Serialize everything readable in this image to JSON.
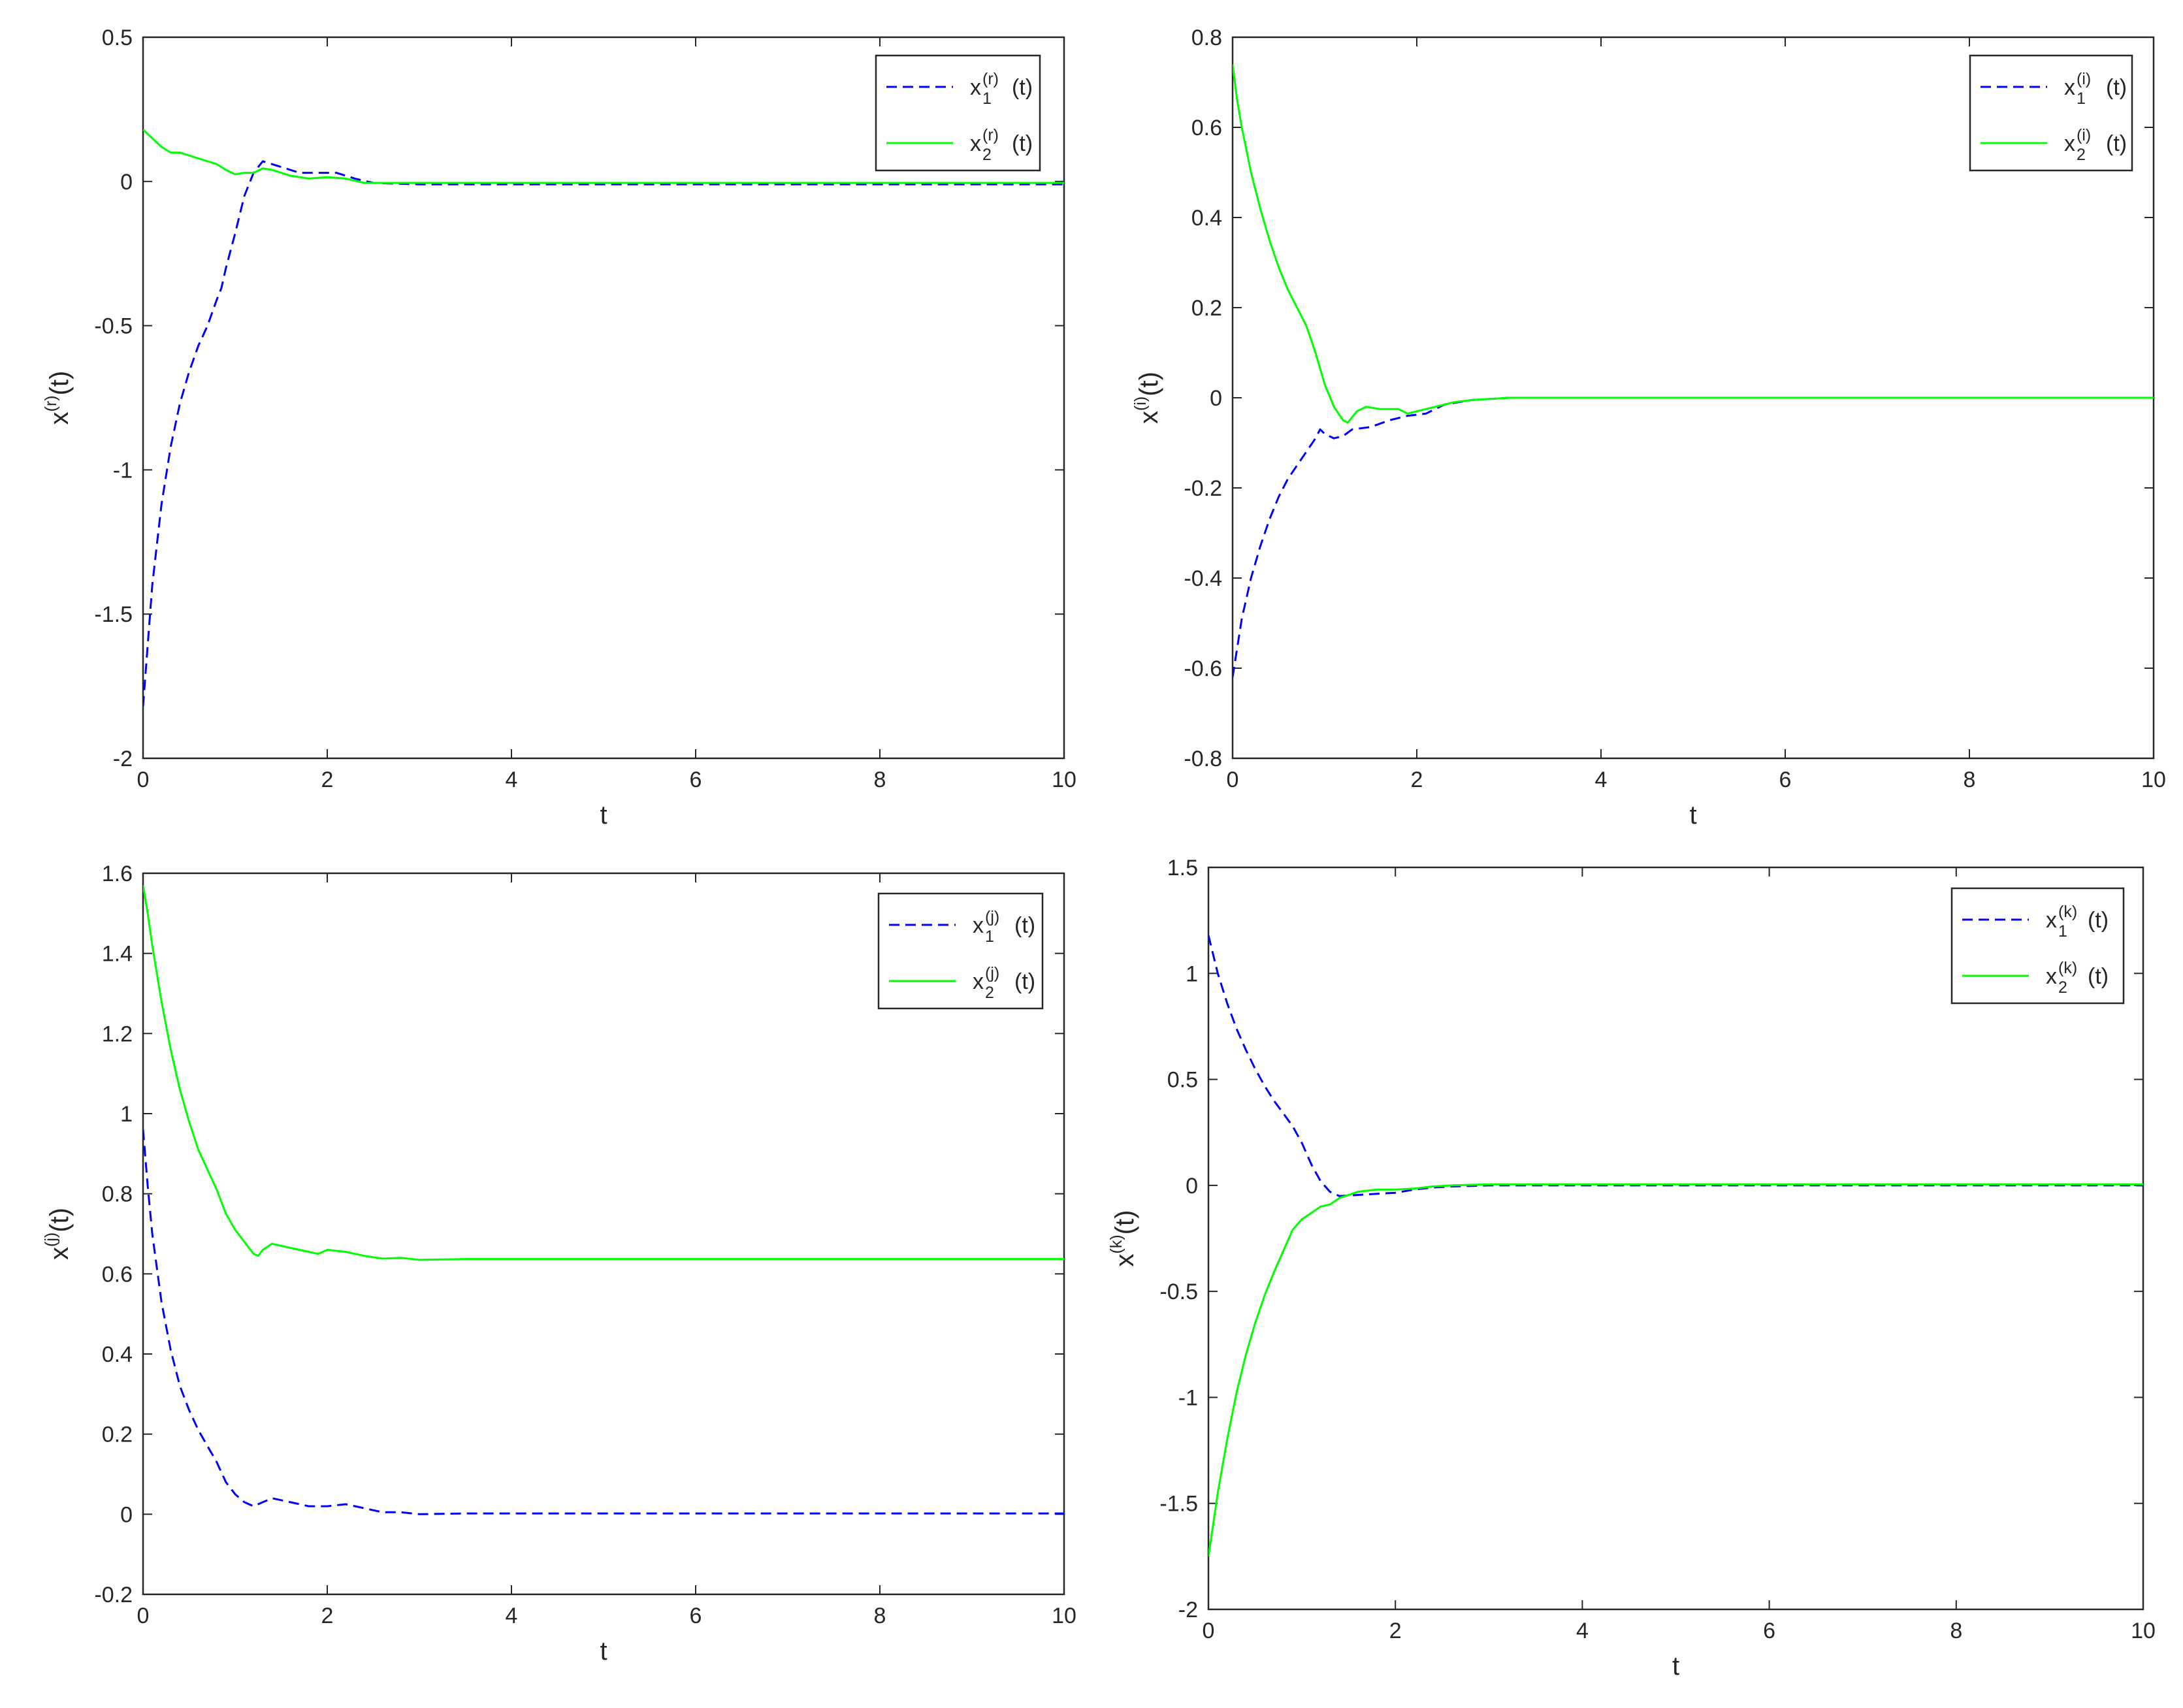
{
  "chart_data": [
    {
      "type": "line",
      "xlabel": "t",
      "ylabel": {
        "base": "x",
        "sup": "(r)",
        "tail": "(t)"
      },
      "xlim": [
        0,
        10
      ],
      "ylim": [
        -2,
        0.5
      ],
      "xticks": [
        "0",
        "2",
        "4",
        "6",
        "8",
        "10"
      ],
      "yticks": [
        "-2",
        "-1.5",
        "-1",
        "-0.5",
        "0",
        "0.5"
      ],
      "legend_position": "top-right",
      "series": [
        {
          "legend": {
            "base": "x",
            "sub": "1",
            "sup": "(r)",
            "tail": "(t)"
          },
          "color": "#0000ff",
          "style": "dashed",
          "points": [
            [
              0,
              -1.82
            ],
            [
              0.1,
              -1.4
            ],
            [
              0.2,
              -1.12
            ],
            [
              0.3,
              -0.92
            ],
            [
              0.4,
              -0.77
            ],
            [
              0.5,
              -0.66
            ],
            [
              0.6,
              -0.57
            ],
            [
              0.7,
              -0.5
            ],
            [
              0.8,
              -0.41
            ],
            [
              0.85,
              -0.37
            ],
            [
              0.9,
              -0.3
            ],
            [
              1.0,
              -0.18
            ],
            [
              1.1,
              -0.05
            ],
            [
              1.2,
              0.03
            ],
            [
              1.3,
              0.07
            ],
            [
              1.5,
              0.05
            ],
            [
              1.7,
              0.03
            ],
            [
              1.9,
              0.03
            ],
            [
              2.1,
              0.03
            ],
            [
              2.3,
              0.01
            ],
            [
              2.5,
              -0.005
            ],
            [
              3,
              -0.01
            ],
            [
              4,
              -0.01
            ],
            [
              6,
              -0.01
            ],
            [
              8,
              -0.01
            ],
            [
              10,
              -0.01
            ]
          ]
        },
        {
          "legend": {
            "base": "x",
            "sub": "2",
            "sup": "(r)",
            "tail": "(t)"
          },
          "color": "#00ff00",
          "style": "solid",
          "points": [
            [
              0,
              0.18
            ],
            [
              0.1,
              0.15
            ],
            [
              0.2,
              0.12
            ],
            [
              0.3,
              0.1
            ],
            [
              0.4,
              0.1
            ],
            [
              0.6,
              0.08
            ],
            [
              0.8,
              0.06
            ],
            [
              0.9,
              0.04
            ],
            [
              1.0,
              0.025
            ],
            [
              1.1,
              0.03
            ],
            [
              1.2,
              0.03
            ],
            [
              1.3,
              0.045
            ],
            [
              1.4,
              0.04
            ],
            [
              1.6,
              0.02
            ],
            [
              1.8,
              0.01
            ],
            [
              2.0,
              0.015
            ],
            [
              2.2,
              0.01
            ],
            [
              2.4,
              -0.005
            ],
            [
              2.6,
              -0.005
            ],
            [
              3,
              -0.005
            ],
            [
              4,
              -0.005
            ],
            [
              6,
              -0.005
            ],
            [
              8,
              -0.005
            ],
            [
              10,
              -0.005
            ]
          ]
        }
      ]
    },
    {
      "type": "line",
      "xlabel": "t",
      "ylabel": {
        "base": "x",
        "sup": "(i)",
        "tail": "(t)"
      },
      "xlim": [
        0,
        10
      ],
      "ylim": [
        -0.8,
        0.8
      ],
      "xticks": [
        "0",
        "2",
        "4",
        "6",
        "8",
        "10"
      ],
      "yticks": [
        "-0.8",
        "-0.6",
        "-0.4",
        "-0.2",
        "0",
        "0.2",
        "0.4",
        "0.6",
        "0.8"
      ],
      "legend_position": "top-right",
      "series": [
        {
          "legend": {
            "base": "x",
            "sub": "1",
            "sup": "(i)",
            "tail": "(t)"
          },
          "color": "#0000ff",
          "style": "dashed",
          "points": [
            [
              0,
              -0.62
            ],
            [
              0.1,
              -0.49
            ],
            [
              0.2,
              -0.4
            ],
            [
              0.3,
              -0.33
            ],
            [
              0.4,
              -0.27
            ],
            [
              0.5,
              -0.22
            ],
            [
              0.6,
              -0.18
            ],
            [
              0.7,
              -0.15
            ],
            [
              0.8,
              -0.12
            ],
            [
              0.9,
              -0.09
            ],
            [
              0.95,
              -0.07
            ],
            [
              1.0,
              -0.08
            ],
            [
              1.1,
              -0.09
            ],
            [
              1.2,
              -0.085
            ],
            [
              1.3,
              -0.07
            ],
            [
              1.5,
              -0.065
            ],
            [
              1.7,
              -0.05
            ],
            [
              1.9,
              -0.04
            ],
            [
              2.1,
              -0.035
            ],
            [
              2.3,
              -0.015
            ],
            [
              2.6,
              -0.005
            ],
            [
              3,
              0.0
            ],
            [
              4,
              0.0
            ],
            [
              6,
              0.0
            ],
            [
              8,
              0.0
            ],
            [
              10,
              0.0
            ]
          ]
        },
        {
          "legend": {
            "base": "x",
            "sub": "2",
            "sup": "(i)",
            "tail": "(t)"
          },
          "color": "#00ff00",
          "style": "solid",
          "points": [
            [
              0,
              0.74
            ],
            [
              0.05,
              0.66
            ],
            [
              0.1,
              0.6
            ],
            [
              0.2,
              0.5
            ],
            [
              0.3,
              0.42
            ],
            [
              0.4,
              0.35
            ],
            [
              0.5,
              0.29
            ],
            [
              0.6,
              0.24
            ],
            [
              0.7,
              0.2
            ],
            [
              0.8,
              0.16
            ],
            [
              0.9,
              0.1
            ],
            [
              1.0,
              0.03
            ],
            [
              1.1,
              -0.02
            ],
            [
              1.2,
              -0.05
            ],
            [
              1.25,
              -0.055
            ],
            [
              1.35,
              -0.03
            ],
            [
              1.45,
              -0.02
            ],
            [
              1.6,
              -0.025
            ],
            [
              1.8,
              -0.025
            ],
            [
              1.9,
              -0.035
            ],
            [
              2.0,
              -0.03
            ],
            [
              2.2,
              -0.02
            ],
            [
              2.4,
              -0.01
            ],
            [
              2.6,
              -0.005
            ],
            [
              3,
              0.0
            ],
            [
              4,
              0.0
            ],
            [
              6,
              0.0
            ],
            [
              8,
              0.0
            ],
            [
              10,
              0.0
            ]
          ]
        }
      ]
    },
    {
      "type": "line",
      "xlabel": "t",
      "ylabel": {
        "base": "x",
        "sup": "(j)",
        "tail": "(t)"
      },
      "xlim": [
        0,
        10
      ],
      "ylim": [
        -0.2,
        1.6
      ],
      "xticks": [
        "0",
        "2",
        "4",
        "6",
        "8",
        "10"
      ],
      "yticks": [
        "-0.2",
        "0",
        "0.2",
        "0.4",
        "0.6",
        "0.8",
        "1",
        "1.2",
        "1.4",
        "1.6"
      ],
      "legend_position": "top-right",
      "series": [
        {
          "legend": {
            "base": "x",
            "sub": "1",
            "sup": "(j)",
            "tail": "(t)"
          },
          "color": "#0000ff",
          "style": "dashed",
          "points": [
            [
              0,
              0.96
            ],
            [
              0.05,
              0.82
            ],
            [
              0.1,
              0.7
            ],
            [
              0.2,
              0.53
            ],
            [
              0.3,
              0.41
            ],
            [
              0.4,
              0.32
            ],
            [
              0.5,
              0.26
            ],
            [
              0.6,
              0.21
            ],
            [
              0.7,
              0.17
            ],
            [
              0.8,
              0.13
            ],
            [
              0.9,
              0.08
            ],
            [
              1.0,
              0.05
            ],
            [
              1.1,
              0.03
            ],
            [
              1.2,
              0.02
            ],
            [
              1.3,
              0.03
            ],
            [
              1.4,
              0.04
            ],
            [
              1.6,
              0.03
            ],
            [
              1.8,
              0.02
            ],
            [
              2.0,
              0.02
            ],
            [
              2.2,
              0.025
            ],
            [
              2.4,
              0.015
            ],
            [
              2.6,
              0.005
            ],
            [
              2.8,
              0.005
            ],
            [
              3.0,
              0.0
            ],
            [
              3.5,
              0.002
            ],
            [
              4,
              0.002
            ],
            [
              6,
              0.002
            ],
            [
              8,
              0.002
            ],
            [
              10,
              0.002
            ]
          ]
        },
        {
          "legend": {
            "base": "x",
            "sub": "2",
            "sup": "(j)",
            "tail": "(t)"
          },
          "color": "#00ff00",
          "style": "solid",
          "points": [
            [
              0,
              1.57
            ],
            [
              0.05,
              1.5
            ],
            [
              0.1,
              1.42
            ],
            [
              0.2,
              1.28
            ],
            [
              0.3,
              1.16
            ],
            [
              0.4,
              1.06
            ],
            [
              0.5,
              0.98
            ],
            [
              0.6,
              0.91
            ],
            [
              0.7,
              0.86
            ],
            [
              0.8,
              0.81
            ],
            [
              0.9,
              0.75
            ],
            [
              1.0,
              0.71
            ],
            [
              1.1,
              0.68
            ],
            [
              1.2,
              0.65
            ],
            [
              1.25,
              0.645
            ],
            [
              1.3,
              0.66
            ],
            [
              1.4,
              0.675
            ],
            [
              1.6,
              0.665
            ],
            [
              1.8,
              0.655
            ],
            [
              1.9,
              0.65
            ],
            [
              2.0,
              0.66
            ],
            [
              2.2,
              0.655
            ],
            [
              2.4,
              0.645
            ],
            [
              2.6,
              0.638
            ],
            [
              2.8,
              0.64
            ],
            [
              3.0,
              0.635
            ],
            [
              3.5,
              0.637
            ],
            [
              4,
              0.637
            ],
            [
              6,
              0.637
            ],
            [
              8,
              0.637
            ],
            [
              10,
              0.637
            ]
          ]
        }
      ]
    },
    {
      "type": "line",
      "xlabel": "t",
      "ylabel": {
        "base": "x",
        "sup": "(k)",
        "tail": "(t)"
      },
      "xlim": [
        0,
        10
      ],
      "ylim": [
        -2,
        1.5
      ],
      "xticks": [
        "0",
        "2",
        "4",
        "6",
        "8",
        "10"
      ],
      "yticks": [
        "-2",
        "-1.5",
        "-1",
        "-0.5",
        "0",
        "0.5",
        "1",
        "1.5"
      ],
      "legend_position": "top-right",
      "series": [
        {
          "legend": {
            "base": "x",
            "sub": "1",
            "sup": "(k)",
            "tail": "(t)"
          },
          "color": "#0000ff",
          "style": "dashed",
          "points": [
            [
              0,
              1.18
            ],
            [
              0.1,
              1.0
            ],
            [
              0.2,
              0.86
            ],
            [
              0.3,
              0.74
            ],
            [
              0.4,
              0.64
            ],
            [
              0.5,
              0.55
            ],
            [
              0.6,
              0.47
            ],
            [
              0.7,
              0.4
            ],
            [
              0.8,
              0.34
            ],
            [
              0.9,
              0.28
            ],
            [
              1.0,
              0.2
            ],
            [
              1.1,
              0.1
            ],
            [
              1.2,
              0.02
            ],
            [
              1.3,
              -0.03
            ],
            [
              1.4,
              -0.05
            ],
            [
              1.6,
              -0.045
            ],
            [
              1.8,
              -0.04
            ],
            [
              2.0,
              -0.035
            ],
            [
              2.2,
              -0.02
            ],
            [
              2.4,
              -0.01
            ],
            [
              2.6,
              -0.005
            ],
            [
              3,
              0.0
            ],
            [
              4,
              0.0
            ],
            [
              6,
              0.0
            ],
            [
              8,
              0.0
            ],
            [
              10,
              0.0
            ]
          ]
        },
        {
          "legend": {
            "base": "x",
            "sub": "2",
            "sup": "(k)",
            "tail": "(t)"
          },
          "color": "#00ff00",
          "style": "solid",
          "points": [
            [
              0,
              -1.75
            ],
            [
              0.05,
              -1.6
            ],
            [
              0.1,
              -1.45
            ],
            [
              0.2,
              -1.2
            ],
            [
              0.3,
              -0.98
            ],
            [
              0.4,
              -0.8
            ],
            [
              0.5,
              -0.65
            ],
            [
              0.6,
              -0.52
            ],
            [
              0.7,
              -0.41
            ],
            [
              0.8,
              -0.31
            ],
            [
              0.9,
              -0.21
            ],
            [
              1.0,
              -0.16
            ],
            [
              1.1,
              -0.13
            ],
            [
              1.2,
              -0.1
            ],
            [
              1.3,
              -0.09
            ],
            [
              1.4,
              -0.06
            ],
            [
              1.6,
              -0.03
            ],
            [
              1.8,
              -0.02
            ],
            [
              2.0,
              -0.02
            ],
            [
              2.2,
              -0.015
            ],
            [
              2.4,
              -0.005
            ],
            [
              2.6,
              0.0
            ],
            [
              3,
              0.005
            ],
            [
              4,
              0.005
            ],
            [
              6,
              0.005
            ],
            [
              8,
              0.005
            ],
            [
              10,
              0.005
            ]
          ]
        }
      ]
    }
  ]
}
